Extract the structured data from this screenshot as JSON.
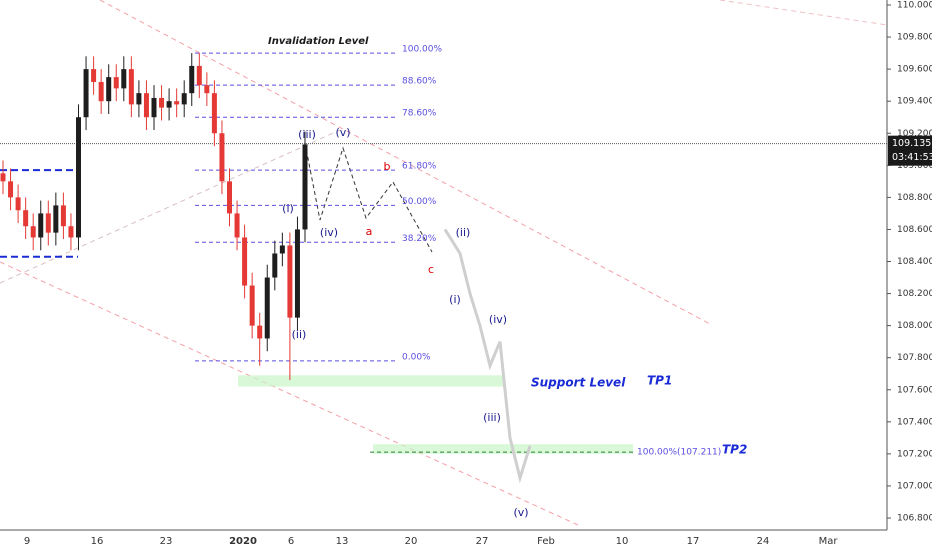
{
  "chart_data": {
    "type": "candlestick",
    "ylim": [
      106.8,
      110.0
    ],
    "yticks": [
      {
        "value": 106.8,
        "label": "106.800"
      },
      {
        "value": 107.0,
        "label": "107.000"
      },
      {
        "value": 107.2,
        "label": "107.200"
      },
      {
        "value": 107.4,
        "label": "107.400"
      },
      {
        "value": 107.6,
        "label": "107.600"
      },
      {
        "value": 107.8,
        "label": "107.800"
      },
      {
        "value": 108.0,
        "label": "108.000"
      },
      {
        "value": 108.2,
        "label": "108.200"
      },
      {
        "value": 108.4,
        "label": "108.400"
      },
      {
        "value": 108.6,
        "label": "108.600"
      },
      {
        "value": 108.8,
        "label": "108.800"
      },
      {
        "value": 109.0,
        "label": "109.000"
      },
      {
        "value": 109.2,
        "label": "109.200"
      },
      {
        "value": 109.4,
        "label": "109.400"
      },
      {
        "value": 109.6,
        "label": "109.600"
      },
      {
        "value": 109.8,
        "label": "109.800"
      },
      {
        "value": 110.0,
        "label": "110.000"
      }
    ],
    "x_labels": [
      "9",
      "16",
      "23",
      "2020",
      "6",
      "13",
      "20",
      "27",
      "Feb",
      "10",
      "17",
      "24",
      "Mar"
    ],
    "current_price": 109.135,
    "countdown": "03:41:53",
    "up_color": "#1e1e1e",
    "down_color": "#e53935",
    "candles": {
      "open": [
        108.95,
        108.9,
        108.8,
        108.72,
        108.62,
        108.55,
        108.7,
        108.58,
        108.75,
        108.62,
        108.55,
        109.3,
        109.6,
        109.52,
        109.4,
        109.55,
        109.48,
        109.6,
        109.38,
        109.45,
        109.3,
        109.42,
        109.36,
        109.4,
        109.38,
        109.45,
        109.62,
        109.5,
        109.45,
        109.2,
        108.9,
        108.7,
        108.55,
        108.25,
        108.0,
        107.92,
        108.3,
        108.45,
        108.5,
        108.05,
        108.6
      ],
      "high": [
        109.03,
        108.98,
        108.88,
        108.8,
        108.7,
        108.78,
        108.78,
        108.83,
        108.83,
        108.7,
        109.38,
        109.68,
        109.68,
        109.6,
        109.63,
        109.63,
        109.68,
        109.68,
        109.53,
        109.53,
        109.5,
        109.5,
        109.48,
        109.48,
        109.53,
        109.7,
        109.7,
        109.58,
        109.53,
        109.28,
        108.98,
        108.78,
        108.63,
        108.33,
        108.08,
        108.38,
        108.53,
        108.58,
        108.58,
        108.68,
        109.21
      ],
      "low": [
        108.82,
        108.72,
        108.64,
        108.54,
        108.47,
        108.47,
        108.5,
        108.5,
        108.54,
        108.47,
        108.47,
        109.22,
        109.44,
        109.32,
        109.32,
        109.4,
        109.4,
        109.3,
        109.3,
        109.22,
        109.22,
        109.28,
        109.28,
        109.3,
        109.3,
        109.37,
        109.42,
        109.37,
        109.12,
        108.82,
        108.62,
        108.47,
        108.17,
        107.92,
        107.75,
        107.84,
        108.22,
        108.37,
        107.66,
        107.97,
        108.52
      ],
      "close": [
        108.9,
        108.8,
        108.72,
        108.62,
        108.55,
        108.7,
        108.58,
        108.75,
        108.62,
        108.55,
        109.3,
        109.6,
        109.52,
        109.4,
        109.55,
        109.48,
        109.6,
        109.38,
        109.45,
        109.3,
        109.42,
        109.36,
        109.4,
        109.38,
        109.45,
        109.62,
        109.5,
        109.45,
        109.2,
        108.9,
        108.7,
        108.55,
        108.25,
        108.0,
        107.92,
        108.3,
        108.45,
        108.5,
        108.05,
        108.6,
        109.13
      ]
    },
    "projection": {
      "color": "#cfcfcf",
      "values": [
        108.6,
        108.45,
        108.2,
        108.0,
        107.75,
        107.9,
        107.3,
        107.05,
        107.25
      ]
    },
    "fib_levels": [
      {
        "value": 109.7,
        "label": "100.00%"
      },
      {
        "value": 109.5,
        "label": "88.60%"
      },
      {
        "value": 109.3,
        "label": "78.60%"
      },
      {
        "value": 108.97,
        "label": "61.80%"
      },
      {
        "value": 108.75,
        "label": "50.00%"
      },
      {
        "value": 108.52,
        "label": "38.20%"
      },
      {
        "value": 107.78,
        "label": "0.00%"
      }
    ],
    "fib_color": "#5b4fe0",
    "tp2_level": {
      "value": 107.211,
      "label": "100.00%(107.211)"
    },
    "support_zones": [
      [
        107.62,
        107.69
      ],
      [
        107.2,
        107.26
      ]
    ],
    "range_lines": [
      108.97,
      108.43
    ],
    "annotations": [
      "Invalidation Level",
      "Support Level",
      "TP1",
      "TP2"
    ],
    "wave_labels": [
      "(iii)",
      "(v)",
      "b",
      "(i)",
      "(iv)",
      "a",
      "(ii)",
      "c",
      "(i)",
      "(iv)",
      "(ii)",
      "(iii)",
      "(v)"
    ]
  }
}
